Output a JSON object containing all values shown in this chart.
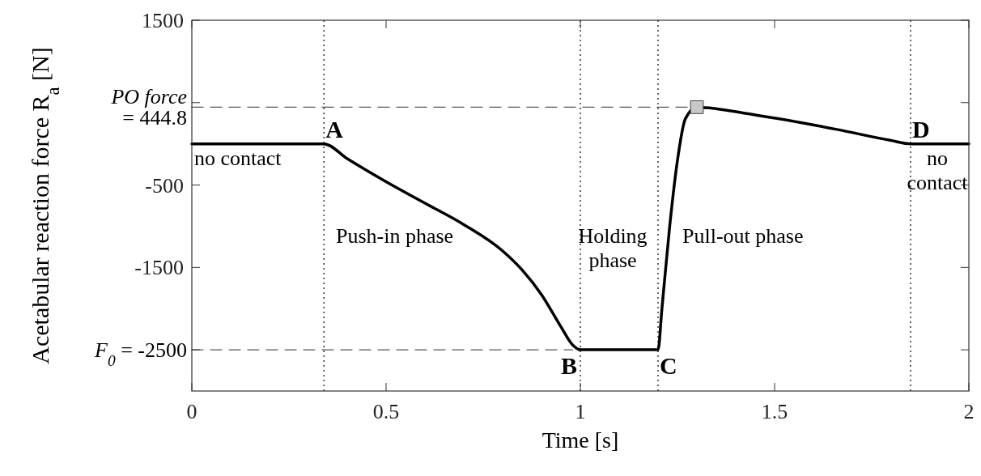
{
  "chart_data": {
    "type": "line",
    "xlabel": "Time [s]",
    "ylabel": "Acetabular reaction force R$_{a}$ [N]",
    "xlim": [
      0,
      2
    ],
    "xticks": [
      0,
      0.5,
      1,
      1.5,
      2
    ],
    "ylim": [
      -3000,
      1500
    ],
    "yticks": [
      1500,
      {
        "value": 500,
        "label": null
      },
      -500,
      -1500,
      {
        "value": -2500,
        "label": null
      }
    ],
    "grid": false,
    "series": [
      {
        "color": "#000000",
        "line_style": "solid",
        "x": [
          0,
          0.34,
          0.4,
          0.5,
          0.6,
          0.7,
          0.8,
          0.85,
          0.9,
          0.95,
          0.98,
          1.0,
          1.2,
          1.21,
          1.23,
          1.25,
          1.27,
          1.3,
          1.45,
          1.66,
          1.8,
          1.85,
          2
        ],
        "values": [
          0,
          0,
          -180,
          -460,
          -720,
          -980,
          -1300,
          -1530,
          -1830,
          -2220,
          -2440,
          -2500,
          -2500,
          -2000,
          -1000,
          -200,
          300,
          444.8,
          350,
          175,
          40,
          0,
          0
        ]
      },
      {
        "name": "PO force\n= 444.8",
        "type": "line",
        "color": "#555555",
        "line_style": "dashed",
        "x": [
          0,
          1.3
        ],
        "values": [
          444.8,
          444.8
        ]
      },
      {
        "name": "F$_{0}$= -2500",
        "type": "line",
        "color": "#555555",
        "line_style": "dashed",
        "x": [
          0,
          0.98
        ],
        "values": [
          -2500,
          -2500
        ]
      },
      {
        "type": "scatter",
        "marker": "square",
        "color": "#c8c8c8",
        "x": [
          1.3
        ],
        "values": [
          444.8
        ]
      }
    ],
    "ref_lines": [
      {
        "axis": "x",
        "value": 0.34,
        "line_style": "dotted"
      },
      {
        "axis": "x",
        "value": 1.0,
        "line_style": "dotted"
      },
      {
        "axis": "x",
        "value": 1.2,
        "line_style": "dotted"
      },
      {
        "axis": "x",
        "value": 1.85,
        "line_style": "dotted"
      }
    ],
    "annotations": [
      {
        "text": "A",
        "x": 0.34,
        "y": 0
      },
      {
        "text": "B",
        "x": 1.0,
        "y": -2500
      },
      {
        "text": "C",
        "x": 1.2,
        "y": -2500
      },
      {
        "text": "D",
        "x": 1.85,
        "y": 0
      },
      "no contact",
      "Push-in phase",
      "Holding\nphase",
      "Pull-out phase",
      "no\ncontact"
    ]
  }
}
